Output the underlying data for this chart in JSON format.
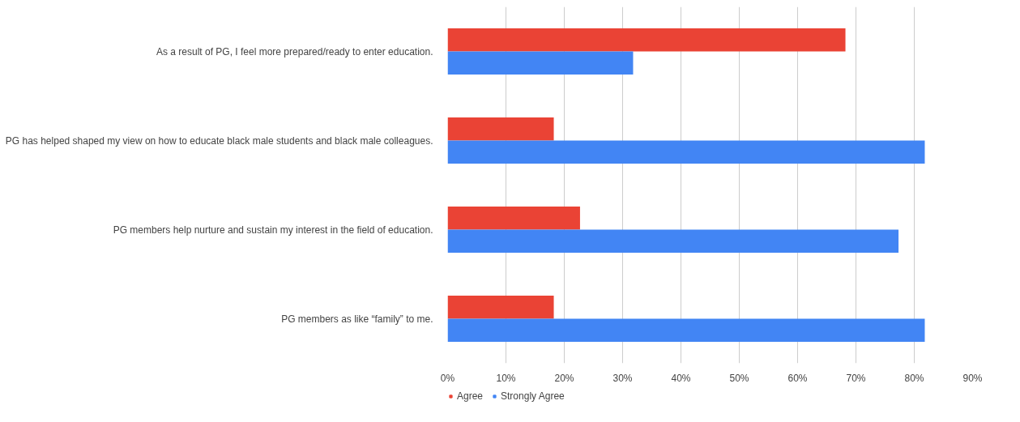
{
  "chart_data": {
    "type": "bar",
    "orientation": "horizontal",
    "categories": [
      "As a result of PG, I feel more prepared/ready to enter education.",
      "PG has helped shaped my view on how to educate black male students and black male colleagues.",
      "PG members help nurture and sustain my interest in the field of education.",
      "PG members as like “family” to me."
    ],
    "series": [
      {
        "name": "Agree",
        "color": "#ea4335",
        "values": [
          68.2,
          18.2,
          22.7,
          18.2
        ]
      },
      {
        "name": "Strongly Agree",
        "color": "#4285f4",
        "values": [
          31.8,
          81.8,
          77.3,
          81.8
        ]
      }
    ],
    "xlim": [
      0,
      90
    ],
    "xticks": [
      {
        "value": 0,
        "label": "0%"
      },
      {
        "value": 10,
        "label": "10%"
      },
      {
        "value": 20,
        "label": "20%"
      },
      {
        "value": 30,
        "label": "30%"
      },
      {
        "value": 40,
        "label": "40%"
      },
      {
        "value": 50,
        "label": "50%"
      },
      {
        "value": 60,
        "label": "60%"
      },
      {
        "value": 70,
        "label": "70%"
      },
      {
        "value": 80,
        "label": "80%"
      },
      {
        "value": 90,
        "label": "90%"
      }
    ],
    "grid": "x",
    "legend": "bottom left"
  }
}
